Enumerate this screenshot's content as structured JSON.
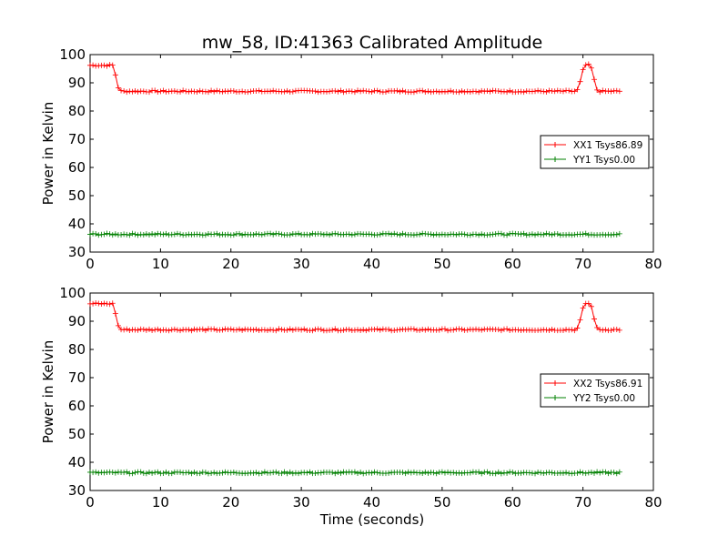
{
  "chart_data": {
    "type": "line",
    "title": "mw_58, ID:41363 Calibrated Amplitude",
    "xlabel": "Time (seconds)",
    "ylabel": "Power in Kelvin",
    "xlim": [
      0,
      80
    ],
    "ylim": [
      30,
      100
    ],
    "xticks": [
      "0",
      "10",
      "20",
      "30",
      "40",
      "50",
      "60",
      "70",
      "80"
    ],
    "yticks": [
      "30",
      "40",
      "50",
      "60",
      "70",
      "80",
      "90",
      "100"
    ],
    "grid": false,
    "legend_position": "center-right",
    "colors": {
      "xx": "#ff0000",
      "yy": "#008000"
    },
    "panels": [
      {
        "xlabel": "",
        "ylabel": "Power in Kelvin",
        "series": [
          {
            "name": "XX1 Tsys86.89",
            "color": "#ff0000",
            "x": [
              0,
              3.4,
              3.8,
              4.2,
              4.6,
              69.0,
              69.4,
              69.8,
              70.2,
              71.0,
              71.4,
              71.8,
              72.2,
              75.5
            ],
            "y": [
              96.2,
              96.2,
              89.5,
              87.2,
              87.0,
              87.0,
              88.0,
              92.5,
              96.3,
              96.3,
              94.0,
              88.0,
              87.0,
              87.0
            ]
          },
          {
            "name": "YY1 Tsys0.00",
            "color": "#008000",
            "x": [
              0,
              75.5
            ],
            "y": [
              36.3,
              36.3
            ]
          }
        ]
      },
      {
        "xlabel": "Time (seconds)",
        "ylabel": "Power in Kelvin",
        "series": [
          {
            "name": "XX2 Tsys86.91",
            "color": "#ff0000",
            "x": [
              0,
              3.4,
              3.8,
              4.2,
              4.6,
              69.0,
              69.4,
              69.8,
              70.2,
              71.0,
              71.4,
              71.8,
              72.2,
              75.5
            ],
            "y": [
              96.2,
              96.2,
              89.5,
              87.2,
              87.0,
              87.0,
              88.0,
              92.5,
              96.3,
              96.3,
              94.0,
              88.0,
              87.0,
              87.0
            ]
          },
          {
            "name": "YY2 Tsys0.00",
            "color": "#008000",
            "x": [
              0,
              75.5
            ],
            "y": [
              36.3,
              36.3
            ]
          }
        ]
      }
    ]
  }
}
